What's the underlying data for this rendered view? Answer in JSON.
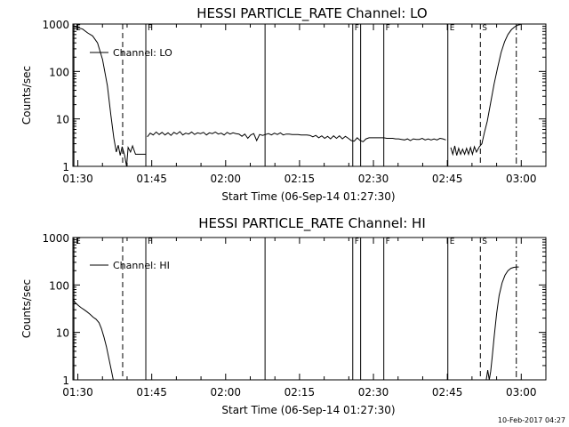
{
  "footer_timestamp": "10-Feb-2017 04:27",
  "chart_data": [
    {
      "type": "line",
      "title": "HESSI PARTICLE_RATE Channel: LO",
      "xlabel": "Start Time (06-Sep-14 01:27:30)",
      "ylabel": "Counts/sec",
      "y_scale": "log",
      "xlim": [
        1.5,
        97.5
      ],
      "ylim": [
        1,
        1000
      ],
      "x_unit": "minutes after 01:27:30",
      "x_ticks": [
        {
          "x": 2.5,
          "label": "01:30"
        },
        {
          "x": 17.5,
          "label": "01:45"
        },
        {
          "x": 32.5,
          "label": "02:00"
        },
        {
          "x": 47.5,
          "label": "02:15"
        },
        {
          "x": 62.5,
          "label": "02:30"
        },
        {
          "x": 77.5,
          "label": "02:45"
        },
        {
          "x": 92.5,
          "label": "03:00"
        }
      ],
      "y_ticks": [
        {
          "y": 1,
          "label": "1"
        },
        {
          "y": 10,
          "label": "10"
        },
        {
          "y": 100,
          "label": "100"
        },
        {
          "y": 1000,
          "label": "1000"
        }
      ],
      "legend": {
        "label": "Channel: LO",
        "placement": "top-left"
      },
      "markers": [
        {
          "x": 1.7,
          "label": "E",
          "style": "solid"
        },
        {
          "x": 11.6,
          "label": "",
          "style": "dashed"
        },
        {
          "x": 16.3,
          "label": "F",
          "style": "solid"
        },
        {
          "x": 40.5,
          "label": "",
          "style": "solid"
        },
        {
          "x": 58.3,
          "label": "F",
          "style": "solid"
        },
        {
          "x": 59.9,
          "label": "",
          "style": "solid"
        },
        {
          "x": 64.6,
          "label": "F",
          "style": "solid"
        },
        {
          "x": 77.6,
          "label": "E",
          "style": "solid"
        },
        {
          "x": 84.2,
          "label": "S",
          "style": "dashed"
        },
        {
          "x": 91.5,
          "label": "",
          "style": "dashdot"
        }
      ],
      "series": [
        {
          "segments": [
            [
              [
                1.5,
                900
              ],
              [
                2.5,
                850
              ],
              [
                3.5,
                780
              ],
              [
                4.5,
                650
              ],
              [
                5.5,
                560
              ],
              [
                6.5,
                400
              ],
              [
                7.5,
                180
              ],
              [
                8.5,
                50
              ],
              [
                9.2,
                12
              ],
              [
                9.8,
                4
              ],
              [
                10.3,
                2
              ],
              [
                10.7,
                2.8
              ],
              [
                11.1,
                1.7
              ],
              [
                11.5,
                2.6
              ],
              [
                12.0,
                1.7
              ],
              [
                12.4,
                1.0
              ],
              [
                12.7,
                2.5
              ],
              [
                13.2,
                2.0
              ],
              [
                13.6,
                2.7
              ],
              [
                14.2,
                1.8
              ],
              [
                14.8,
                1.8
              ],
              [
                15.5,
                1.8
              ],
              [
                16.2,
                1.8
              ]
            ],
            [
              [
                16.6,
                4.2
              ],
              [
                17.2,
                5.0
              ],
              [
                17.8,
                4.6
              ],
              [
                18.4,
                5.3
              ],
              [
                19.0,
                4.7
              ],
              [
                19.6,
                5.2
              ],
              [
                20.2,
                4.6
              ],
              [
                20.8,
                5.1
              ],
              [
                21.4,
                4.5
              ],
              [
                22.0,
                5.2
              ],
              [
                22.6,
                4.8
              ],
              [
                23.2,
                5.4
              ],
              [
                23.8,
                4.6
              ],
              [
                24.4,
                5.0
              ],
              [
                25.0,
                4.8
              ],
              [
                25.6,
                5.3
              ],
              [
                26.2,
                4.7
              ],
              [
                26.8,
                5.1
              ],
              [
                27.4,
                4.9
              ],
              [
                28.0,
                5.2
              ],
              [
                28.6,
                4.6
              ],
              [
                29.2,
                5.1
              ],
              [
                29.8,
                4.9
              ],
              [
                30.4,
                5.3
              ],
              [
                31.0,
                4.8
              ],
              [
                31.6,
                5.0
              ],
              [
                32.2,
                4.6
              ],
              [
                32.8,
                5.2
              ],
              [
                33.4,
                4.8
              ],
              [
                34.0,
                5.1
              ],
              [
                34.6,
                4.9
              ],
              [
                35.2,
                4.8
              ],
              [
                35.8,
                4.3
              ],
              [
                36.4,
                4.8
              ],
              [
                37.0,
                3.9
              ],
              [
                37.6,
                4.6
              ],
              [
                38.2,
                4.9
              ],
              [
                38.8,
                3.5
              ],
              [
                39.4,
                4.7
              ],
              [
                40.0,
                4.5
              ],
              [
                40.6,
                4.7
              ],
              [
                41.2,
                4.9
              ],
              [
                41.8,
                4.6
              ],
              [
                42.4,
                5.0
              ],
              [
                43.0,
                4.7
              ],
              [
                43.6,
                5.1
              ],
              [
                44.2,
                4.6
              ],
              [
                44.8,
                4.8
              ],
              [
                45.4,
                4.8
              ],
              [
                46.0,
                4.7
              ],
              [
                46.6,
                4.7
              ],
              [
                47.2,
                4.7
              ],
              [
                47.8,
                4.6
              ],
              [
                48.4,
                4.6
              ],
              [
                49.0,
                4.6
              ],
              [
                49.6,
                4.5
              ],
              [
                50.2,
                4.2
              ],
              [
                50.8,
                4.5
              ],
              [
                51.4,
                4.0
              ],
              [
                52.0,
                4.4
              ],
              [
                52.6,
                3.9
              ],
              [
                53.2,
                4.3
              ],
              [
                53.8,
                3.8
              ],
              [
                54.4,
                4.4
              ],
              [
                55.0,
                3.9
              ],
              [
                55.6,
                4.4
              ],
              [
                56.2,
                3.8
              ],
              [
                56.8,
                4.3
              ],
              [
                57.4,
                3.9
              ],
              [
                58.0,
                3.5
              ],
              [
                58.6,
                3.4
              ],
              [
                59.2,
                4.0
              ],
              [
                59.8,
                3.5
              ],
              [
                60.4,
                3.3
              ],
              [
                61.0,
                3.8
              ],
              [
                61.6,
                4.0
              ],
              [
                62.2,
                4.0
              ],
              [
                62.8,
                4.0
              ],
              [
                63.4,
                4.0
              ],
              [
                64.0,
                4.0
              ],
              [
                64.6,
                4.0
              ],
              [
                65.2,
                3.9
              ],
              [
                65.8,
                3.9
              ],
              [
                66.4,
                3.9
              ],
              [
                67.0,
                3.8
              ],
              [
                67.6,
                3.8
              ],
              [
                68.2,
                3.7
              ],
              [
                68.8,
                3.6
              ],
              [
                69.4,
                3.8
              ],
              [
                70.0,
                3.5
              ],
              [
                70.6,
                3.8
              ],
              [
                71.2,
                3.7
              ],
              [
                71.8,
                3.7
              ],
              [
                72.4,
                3.9
              ],
              [
                73.0,
                3.6
              ],
              [
                73.6,
                3.8
              ],
              [
                74.2,
                3.6
              ],
              [
                74.8,
                3.8
              ],
              [
                75.4,
                3.6
              ],
              [
                76.0,
                3.9
              ],
              [
                76.6,
                3.8
              ],
              [
                77.2,
                3.6
              ]
            ],
            [
              [
                78.2,
                2.5
              ],
              [
                78.6,
                1.8
              ],
              [
                79.0,
                2.7
              ],
              [
                79.4,
                1.7
              ],
              [
                79.8,
                2.4
              ],
              [
                80.2,
                1.8
              ],
              [
                80.6,
                2.3
              ],
              [
                81.0,
                1.8
              ],
              [
                81.4,
                2.4
              ],
              [
                81.8,
                1.8
              ],
              [
                82.2,
                2.5
              ],
              [
                82.6,
                1.8
              ],
              [
                83.0,
                2.6
              ],
              [
                83.4,
                2.0
              ],
              [
                84.0,
                2.6
              ],
              [
                84.5,
                3.0
              ],
              [
                85.0,
                5.0
              ],
              [
                85.6,
                9.0
              ],
              [
                86.3,
                22.0
              ],
              [
                87.0,
                55.0
              ],
              [
                87.7,
                120.0
              ],
              [
                88.4,
                250.0
              ],
              [
                89.1,
                420.0
              ],
              [
                89.8,
                600.0
              ],
              [
                90.5,
                760.0
              ],
              [
                91.2,
                880.0
              ],
              [
                91.8,
                950.0
              ],
              [
                92.4,
                980.0
              ]
            ]
          ]
        }
      ]
    },
    {
      "type": "line",
      "title": "HESSI PARTICLE_RATE Channel: HI",
      "xlabel": "Start Time (06-Sep-14 01:27:30)",
      "ylabel": "Counts/sec",
      "y_scale": "log",
      "xlim": [
        1.5,
        97.5
      ],
      "ylim": [
        1,
        1000
      ],
      "x_unit": "minutes after 01:27:30",
      "x_ticks": [
        {
          "x": 2.5,
          "label": "01:30"
        },
        {
          "x": 17.5,
          "label": "01:45"
        },
        {
          "x": 32.5,
          "label": "02:00"
        },
        {
          "x": 47.5,
          "label": "02:15"
        },
        {
          "x": 62.5,
          "label": "02:30"
        },
        {
          "x": 77.5,
          "label": "02:45"
        },
        {
          "x": 92.5,
          "label": "03:00"
        }
      ],
      "y_ticks": [
        {
          "y": 1,
          "label": "1"
        },
        {
          "y": 10,
          "label": "10"
        },
        {
          "y": 100,
          "label": "100"
        },
        {
          "y": 1000,
          "label": "1000"
        }
      ],
      "legend": {
        "label": "Channel: HI",
        "placement": "top-left"
      },
      "markers": [
        {
          "x": 1.7,
          "label": "E",
          "style": "solid"
        },
        {
          "x": 11.6,
          "label": "",
          "style": "dashed"
        },
        {
          "x": 16.3,
          "label": "F",
          "style": "solid"
        },
        {
          "x": 40.5,
          "label": "",
          "style": "solid"
        },
        {
          "x": 58.3,
          "label": "F",
          "style": "solid"
        },
        {
          "x": 59.9,
          "label": "",
          "style": "solid"
        },
        {
          "x": 64.6,
          "label": "F",
          "style": "solid"
        },
        {
          "x": 77.6,
          "label": "E",
          "style": "solid"
        },
        {
          "x": 84.2,
          "label": "S",
          "style": "dashed"
        },
        {
          "x": 91.5,
          "label": "",
          "style": "dashdot"
        }
      ],
      "series": [
        {
          "segments": [
            [
              [
                1.5,
                50
              ],
              [
                2.0,
                42
              ],
              [
                2.6,
                37
              ],
              [
                3.2,
                33
              ],
              [
                3.8,
                30
              ],
              [
                4.4,
                27
              ],
              [
                5.0,
                24
              ],
              [
                5.6,
                21
              ],
              [
                6.2,
                19
              ],
              [
                6.8,
                16
              ],
              [
                7.3,
                12
              ],
              [
                7.8,
                8
              ],
              [
                8.3,
                5
              ],
              [
                8.8,
                2.8
              ],
              [
                9.3,
                1.6
              ],
              [
                9.7,
                1.0
              ]
            ],
            [
              [
                85.4,
                1.0
              ],
              [
                85.7,
                1.6
              ],
              [
                86.0,
                1.0
              ],
              [
                86.3,
                1.5
              ],
              [
                86.6,
                3.0
              ],
              [
                87.0,
                8.0
              ],
              [
                87.5,
                25.0
              ],
              [
                88.0,
                60.0
              ],
              [
                88.6,
                110.0
              ],
              [
                89.2,
                160.0
              ],
              [
                89.8,
                200.0
              ],
              [
                90.4,
                225.0
              ],
              [
                91.0,
                235.0
              ],
              [
                91.6,
                240.0
              ],
              [
                92.0,
                240.0
              ]
            ]
          ]
        }
      ]
    }
  ]
}
